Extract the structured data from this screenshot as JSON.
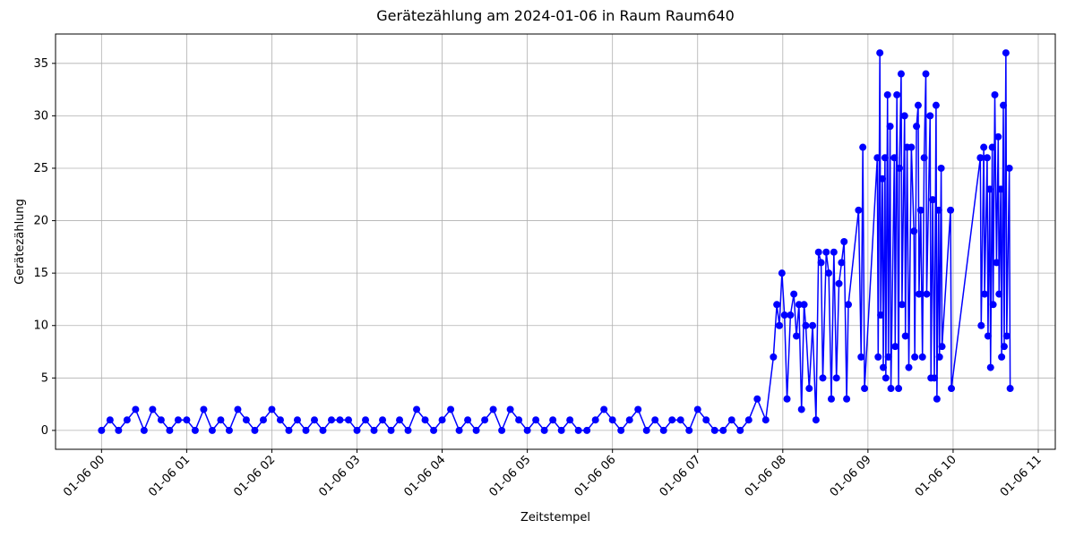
{
  "chart_data": {
    "type": "line",
    "title": "Gerätezählung am 2024-01-06 in Raum Raum640",
    "x_label": "Zeitstempel",
    "y_label": "Gerätezählung",
    "xlim": [
      -0.54,
      11.2
    ],
    "ylim": [
      -1.8,
      37.8
    ],
    "xticks": [
      {
        "value": 0,
        "label": "01-06 00"
      },
      {
        "value": 1,
        "label": "01-06 01"
      },
      {
        "value": 2,
        "label": "01-06 02"
      },
      {
        "value": 3,
        "label": "01-06 03"
      },
      {
        "value": 4,
        "label": "01-06 04"
      },
      {
        "value": 5,
        "label": "01-06 05"
      },
      {
        "value": 6,
        "label": "01-06 06"
      },
      {
        "value": 7,
        "label": "01-06 07"
      },
      {
        "value": 8,
        "label": "01-06 08"
      },
      {
        "value": 9,
        "label": "01-06 09"
      },
      {
        "value": 10,
        "label": "01-06 10"
      },
      {
        "value": 11,
        "label": "01-06 11"
      }
    ],
    "yticks": [
      0,
      5,
      10,
      15,
      20,
      25,
      30,
      35
    ],
    "grid": true,
    "x": [
      0,
      0.1,
      0.2,
      0.3,
      0.4,
      0.5,
      0.6,
      0.7,
      0.8,
      0.9,
      1.0,
      1.1,
      1.2,
      1.3,
      1.4,
      1.5,
      1.6,
      1.7,
      1.8,
      1.9,
      2.0,
      2.1,
      2.2,
      2.3,
      2.4,
      2.5,
      2.6,
      2.7,
      2.8,
      2.9,
      3.0,
      3.1,
      3.2,
      3.3,
      3.4,
      3.5,
      3.6,
      3.7,
      3.8,
      3.9,
      4.0,
      4.1,
      4.2,
      4.3,
      4.4,
      4.5,
      4.6,
      4.7,
      4.8,
      4.9,
      5.0,
      5.1,
      5.2,
      5.3,
      5.4,
      5.5,
      5.6,
      5.7,
      5.8,
      5.9,
      6.0,
      6.1,
      6.2,
      6.3,
      6.4,
      6.5,
      6.6,
      6.7,
      6.8,
      6.9,
      7.0,
      7.1,
      7.2,
      7.3,
      7.4,
      7.5,
      7.6,
      7.7,
      7.8,
      7.89,
      7.93,
      7.96,
      7.99,
      8.02,
      8.05,
      8.09,
      8.13,
      8.16,
      8.19,
      8.22,
      8.25,
      8.27,
      8.31,
      8.35,
      8.39,
      8.42,
      8.45,
      8.47,
      8.51,
      8.54,
      8.57,
      8.6,
      8.63,
      8.66,
      8.69,
      8.72,
      8.75,
      8.77,
      8.89,
      8.92,
      8.94,
      8.96,
      9.11,
      9.12,
      9.14,
      9.15,
      9.17,
      9.18,
      9.2,
      9.21,
      9.23,
      9.24,
      9.26,
      9.27,
      9.31,
      9.32,
      9.34,
      9.36,
      9.37,
      9.39,
      9.4,
      9.43,
      9.44,
      9.46,
      9.48,
      9.51,
      9.54,
      9.55,
      9.57,
      9.59,
      9.6,
      9.62,
      9.64,
      9.66,
      9.68,
      9.69,
      9.73,
      9.74,
      9.76,
      9.78,
      9.8,
      9.81,
      9.83,
      9.84,
      9.86,
      9.87,
      9.97,
      9.98,
      10.32,
      10.33,
      10.36,
      10.37,
      10.4,
      10.41,
      10.43,
      10.44,
      10.46,
      10.47,
      10.49,
      10.51,
      10.53,
      10.54,
      10.56,
      10.57,
      10.59,
      10.6,
      10.62,
      10.63,
      10.66,
      10.67
    ],
    "series": [
      {
        "color": "#0000ff",
        "values": [
          0,
          1,
          0,
          1,
          2,
          0,
          2,
          1,
          0,
          1,
          1,
          0,
          2,
          0,
          1,
          0,
          2,
          1,
          0,
          1,
          2,
          1,
          0,
          1,
          0,
          1,
          0,
          1,
          1,
          1,
          0,
          1,
          0,
          1,
          0,
          1,
          0,
          2,
          1,
          0,
          1,
          2,
          0,
          1,
          0,
          1,
          2,
          0,
          2,
          1,
          0,
          1,
          0,
          1,
          0,
          1,
          0,
          0,
          1,
          2,
          1,
          0,
          1,
          2,
          0,
          1,
          0,
          1,
          1,
          0,
          2,
          1,
          0,
          0,
          1,
          0,
          1,
          3,
          1,
          7,
          12,
          10,
          15,
          11,
          3,
          11,
          13,
          9,
          12,
          2,
          12,
          10,
          4,
          10,
          1,
          17,
          16,
          5,
          17,
          15,
          3,
          17,
          5,
          14,
          16,
          18,
          3,
          12,
          21,
          7,
          27,
          4,
          26,
          7,
          36,
          11,
          24,
          6,
          26,
          5,
          32,
          7,
          29,
          4,
          26,
          8,
          32,
          4,
          25,
          34,
          12,
          30,
          9,
          27,
          6,
          27,
          19,
          7,
          29,
          31,
          13,
          21,
          7,
          26,
          34,
          13,
          30,
          5,
          22,
          5,
          31,
          3,
          21,
          7,
          25,
          8,
          21,
          4,
          26,
          10,
          27,
          13,
          26,
          9,
          23,
          6,
          27,
          12,
          32,
          16,
          28,
          13,
          23,
          7,
          31,
          8,
          36,
          9,
          25,
          4
        ]
      }
    ]
  }
}
